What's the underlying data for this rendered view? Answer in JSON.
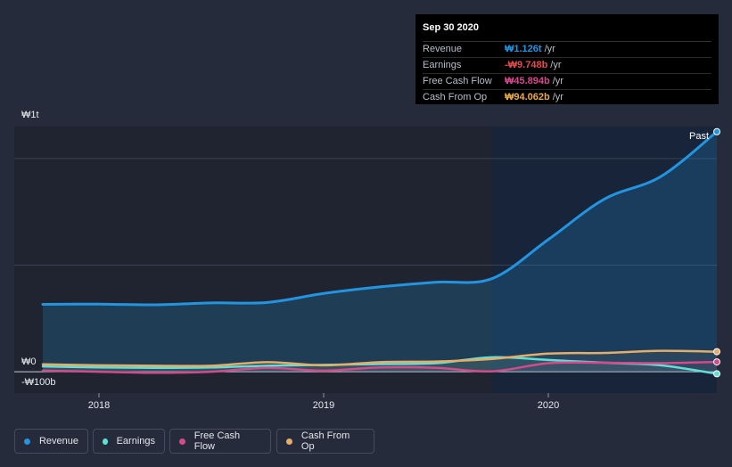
{
  "tooltip": {
    "date": "Sep 30 2020",
    "rows": [
      {
        "label": "Revenue",
        "value": "₩1.126t",
        "unit": "/yr",
        "color": "#2394df"
      },
      {
        "label": "Earnings",
        "value": "-₩9.748b",
        "unit": "/yr",
        "color": "#e64b4b"
      },
      {
        "label": "Free Cash Flow",
        "value": "₩45.894b",
        "unit": "/yr",
        "color": "#d4498c"
      },
      {
        "label": "Cash From Op",
        "value": "₩94.062b",
        "unit": "/yr",
        "color": "#e9a94d"
      }
    ]
  },
  "past_label": "Past",
  "legend": [
    {
      "label": "Revenue",
      "color": "#2394df"
    },
    {
      "label": "Earnings",
      "color": "#5ee0d6"
    },
    {
      "label": "Free Cash Flow",
      "color": "#d44a8b"
    },
    {
      "label": "Cash From Op",
      "color": "#e5ad68"
    }
  ],
  "chart_data": {
    "type": "area",
    "y_tick_labels": [
      "₩1t",
      "₩0",
      "-₩100b"
    ],
    "x_tick_labels": [
      "2018",
      "2019",
      "2020"
    ],
    "ylim": [
      -100,
      1150
    ],
    "grid": true,
    "legend_position": "bottom",
    "x": [
      2017.75,
      2018.0,
      2018.25,
      2018.5,
      2018.75,
      2019.0,
      2019.25,
      2019.5,
      2019.75,
      2020.0,
      2020.25,
      2020.5,
      2020.75
    ],
    "series": [
      {
        "name": "Revenue",
        "color": "#2394df",
        "values": [
          316,
          317,
          314,
          323,
          325,
          367,
          398,
          420,
          437,
          620,
          810,
          915,
          1126
        ]
      },
      {
        "name": "Earnings",
        "color": "#5ee0d6",
        "values": [
          25,
          20,
          18,
          20,
          28,
          32,
          36,
          40,
          68,
          55,
          42,
          30,
          -9.748
        ]
      },
      {
        "name": "Free Cash Flow",
        "color": "#d44a8b",
        "values": [
          5,
          0,
          -5,
          0,
          18,
          5,
          20,
          18,
          2,
          40,
          42,
          40,
          45.894
        ]
      },
      {
        "name": "Cash From Op",
        "color": "#e5ad68",
        "values": [
          35,
          30,
          28,
          28,
          45,
          30,
          45,
          48,
          60,
          85,
          88,
          98,
          94.062
        ]
      }
    ]
  }
}
